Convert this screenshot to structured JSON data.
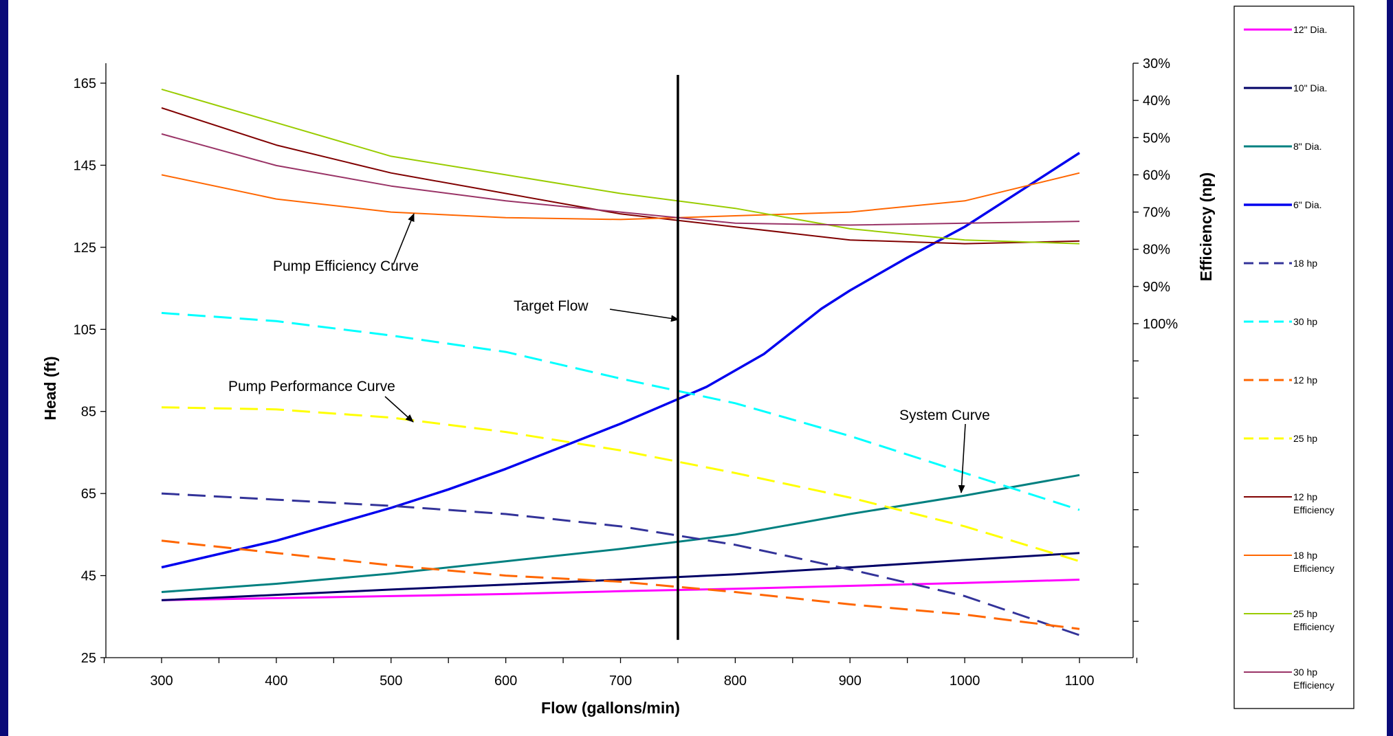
{
  "chart_data": {
    "type": "line",
    "xlabel": "Flow (gallons/min)",
    "ylabel": "Head (ft)",
    "y2label": "Efficiency (np)",
    "xlim": [
      250,
      1150
    ],
    "ylim": [
      25,
      172
    ],
    "y2_range_pct": [
      30,
      100
    ],
    "x_ticks": [
      300,
      400,
      500,
      600,
      700,
      800,
      900,
      1000,
      1100
    ],
    "y_ticks": [
      25,
      45,
      65,
      85,
      105,
      125,
      145,
      165
    ],
    "y2_ticks": [
      "30%",
      "40%",
      "50%",
      "60%",
      "70%",
      "80%",
      "90%",
      "100%"
    ],
    "grid": false,
    "legend_position": "right",
    "series": [
      {
        "name": "12\" Dia.",
        "axis": "head",
        "style": "solid",
        "color": "#ff00ff",
        "width": 3,
        "x": [
          300,
          400,
          500,
          600,
          700,
          800,
          900,
          1000,
          1100
        ],
        "y": [
          39,
          39.5,
          40,
          40.5,
          41.2,
          41.8,
          42.5,
          43.2,
          44
        ]
      },
      {
        "name": "10\" Dia.",
        "axis": "head",
        "style": "solid",
        "color": "#000066",
        "width": 3,
        "x": [
          300,
          400,
          500,
          600,
          700,
          800,
          900,
          1000,
          1100
        ],
        "y": [
          39,
          40.3,
          41.6,
          42.8,
          44,
          45.3,
          47,
          48.8,
          50.5
        ]
      },
      {
        "name": "8\" Dia.",
        "axis": "head",
        "style": "solid",
        "color": "#008080",
        "width": 3,
        "x": [
          300,
          400,
          500,
          600,
          700,
          800,
          900,
          1000,
          1100
        ],
        "y": [
          41,
          43,
          45.5,
          48.5,
          51.5,
          55,
          60,
          64.5,
          69.5
        ]
      },
      {
        "name": "6\" Dia.",
        "axis": "head",
        "style": "solid",
        "color": "#0000ee",
        "width": 3.5,
        "x": [
          300,
          400,
          500,
          550,
          600,
          650,
          700,
          750,
          775,
          800,
          825,
          850,
          875,
          900,
          950,
          1000,
          1050,
          1100
        ],
        "y": [
          47,
          53.5,
          61.5,
          66,
          71,
          76.5,
          82,
          88,
          91,
          95,
          99,
          104.5,
          110,
          114.5,
          122.5,
          130,
          139,
          148
        ]
      },
      {
        "name": "18 hp",
        "axis": "head",
        "style": "dashed",
        "color": "#333399",
        "width": 3,
        "x": [
          300,
          400,
          500,
          600,
          700,
          800,
          900,
          1000,
          1100
        ],
        "y": [
          65,
          63.5,
          62,
          60,
          57,
          52.5,
          46.5,
          40,
          30.5
        ]
      },
      {
        "name": "30 hp",
        "axis": "head",
        "style": "dashed",
        "color": "#00ffff",
        "width": 3,
        "x": [
          300,
          400,
          500,
          600,
          700,
          750,
          800,
          900,
          1000,
          1100
        ],
        "y": [
          109,
          107,
          103.5,
          99.5,
          93,
          90,
          87,
          79,
          70,
          61
        ]
      },
      {
        "name": "12 hp",
        "axis": "head",
        "style": "dashed",
        "color": "#ff6600",
        "width": 3,
        "x": [
          300,
          400,
          500,
          600,
          700,
          800,
          900,
          1000,
          1100
        ],
        "y": [
          53.5,
          50.5,
          47.5,
          45,
          43.5,
          41,
          38,
          35.5,
          32
        ]
      },
      {
        "name": "25 hp",
        "axis": "head",
        "style": "dashed",
        "color": "#ffff00",
        "width": 3,
        "x": [
          300,
          400,
          500,
          600,
          700,
          800,
          900,
          1000,
          1100
        ],
        "y": [
          86,
          85.5,
          83.5,
          80,
          75.5,
          70,
          64,
          57,
          48.5
        ]
      },
      {
        "name": "12 hp Efficiency",
        "axis": "efficiency",
        "style": "solid",
        "color": "#800000",
        "width": 2,
        "x": [
          300,
          400,
          500,
          600,
          700,
          800,
          900,
          1000,
          1100
        ],
        "y": [
          42,
          52,
          59.5,
          65,
          70.5,
          74,
          77.5,
          78.5,
          77.8
        ]
      },
      {
        "name": "18 hp Efficiency",
        "axis": "efficiency",
        "style": "solid",
        "color": "#ff6600",
        "width": 2,
        "x": [
          300,
          400,
          500,
          600,
          700,
          800,
          900,
          1000,
          1100
        ],
        "y": [
          60,
          66.5,
          70,
          71.5,
          72,
          71,
          70,
          67,
          59.5
        ]
      },
      {
        "name": "25 hp Efficiency",
        "axis": "efficiency",
        "style": "solid",
        "color": "#99cc00",
        "width": 2,
        "x": [
          300,
          400,
          500,
          600,
          700,
          800,
          900,
          1000,
          1100
        ],
        "y": [
          37,
          46,
          55,
          60,
          65,
          69,
          74.5,
          77.5,
          78.5
        ]
      },
      {
        "name": "30 hp Efficiency",
        "axis": "efficiency",
        "style": "solid",
        "color": "#993366",
        "width": 2,
        "x": [
          300,
          400,
          500,
          600,
          700,
          800,
          900,
          1000,
          1100
        ],
        "y": [
          49,
          57.5,
          63,
          67,
          70,
          73,
          73.5,
          73,
          72.5
        ]
      }
    ],
    "target_flow": {
      "x": 750,
      "y_from": 28,
      "y_to": 167
    },
    "annotations": [
      {
        "text": "Pump Efficiency Curve",
        "x": 515,
        "y": 120,
        "arrow_to": [
          520,
          133
        ]
      },
      {
        "text": "Target Flow",
        "x": 578,
        "y": 110,
        "arrow_to": [
          748,
          107
        ]
      },
      {
        "text": "Pump Performance Curve",
        "x": 450,
        "y": 91,
        "arrow_to": [
          520,
          83
        ]
      },
      {
        "text": "System Curve",
        "x": 990,
        "y": 84,
        "arrow_to": [
          993,
          68.5
        ]
      }
    ]
  }
}
